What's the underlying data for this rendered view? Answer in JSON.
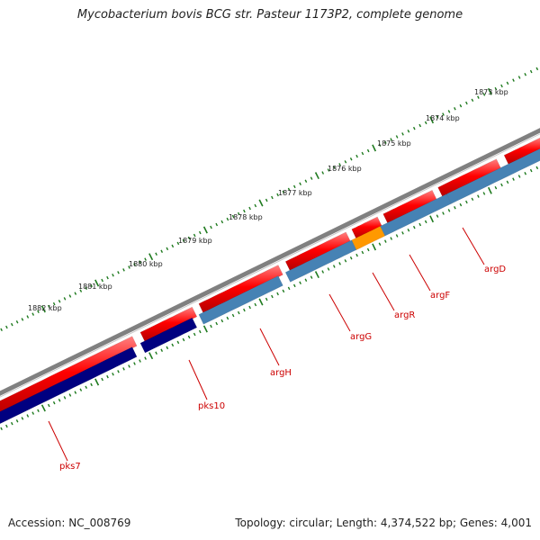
{
  "title": "Mycobacterium bovis BCG str. Pasteur 1173P2, complete genome",
  "footer": {
    "accession": "Accession: NC_008769",
    "summary": "Topology: circular; Length: 4,374,522 bp; Genes: 4,001"
  },
  "ticks": [
    "1873 kbp",
    "1874 kbp",
    "1875 kbp",
    "1876 kbp",
    "1877 kbp",
    "1878 kbp",
    "1879 kbp",
    "1880 kbp",
    "1881 kbp",
    "1882 kbp"
  ],
  "genes": [
    {
      "name": "argD",
      "strand": "reverse",
      "color": "#4682b4"
    },
    {
      "name": "argF",
      "strand": "reverse",
      "color": "#4682b4"
    },
    {
      "name": "argR",
      "strand": "reverse",
      "color": "#ff9900"
    },
    {
      "name": "argG",
      "strand": "reverse",
      "color": "#4682b4"
    },
    {
      "name": "argH",
      "strand": "reverse",
      "color": "#4682b4"
    },
    {
      "name": "pks10",
      "strand": "reverse",
      "color": "#000080"
    },
    {
      "name": "pks7",
      "strand": "reverse",
      "color": "#000080"
    }
  ],
  "colors": {
    "backbone": "#808080",
    "forward_gene": "#ff0000",
    "reverse_gene": "#4682b4",
    "reverse_pks": "#000080",
    "argR": "#ff9900",
    "tick": "#1e7a1e",
    "gene_label": "#cc0000"
  }
}
